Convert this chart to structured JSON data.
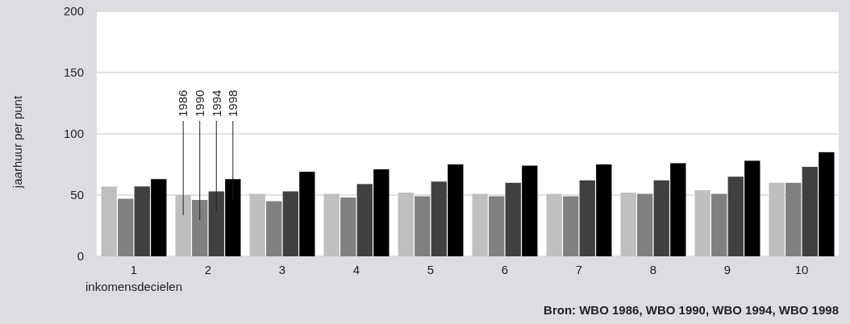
{
  "chart_data": {
    "type": "bar",
    "xlabel": "inkomensdecielen",
    "ylabel": "jaarhuur per punt",
    "categories": [
      "1",
      "2",
      "3",
      "4",
      "5",
      "6",
      "7",
      "8",
      "9",
      "10"
    ],
    "series": [
      {
        "name": "1986",
        "color": "#bfbfbf",
        "values": [
          57,
          50,
          51,
          51,
          52,
          51,
          51,
          52,
          54,
          60
        ]
      },
      {
        "name": "1990",
        "color": "#808080",
        "values": [
          47,
          46,
          45,
          48,
          49,
          49,
          49,
          51,
          51,
          60
        ]
      },
      {
        "name": "1994",
        "color": "#404040",
        "values": [
          57,
          53,
          53,
          59,
          61,
          60,
          62,
          62,
          65,
          73
        ]
      },
      {
        "name": "1998",
        "color": "#000000",
        "values": [
          63,
          63,
          69,
          71,
          75,
          74,
          75,
          76,
          78,
          85
        ]
      }
    ],
    "ylim": [
      0,
      200
    ],
    "yticks": [
      0,
      50,
      100,
      150,
      200
    ],
    "grid": "y",
    "legend": false,
    "annotations": [
      "Bron: WBO 1986, WBO 1990, WBO 1994, WBO 1998"
    ]
  }
}
